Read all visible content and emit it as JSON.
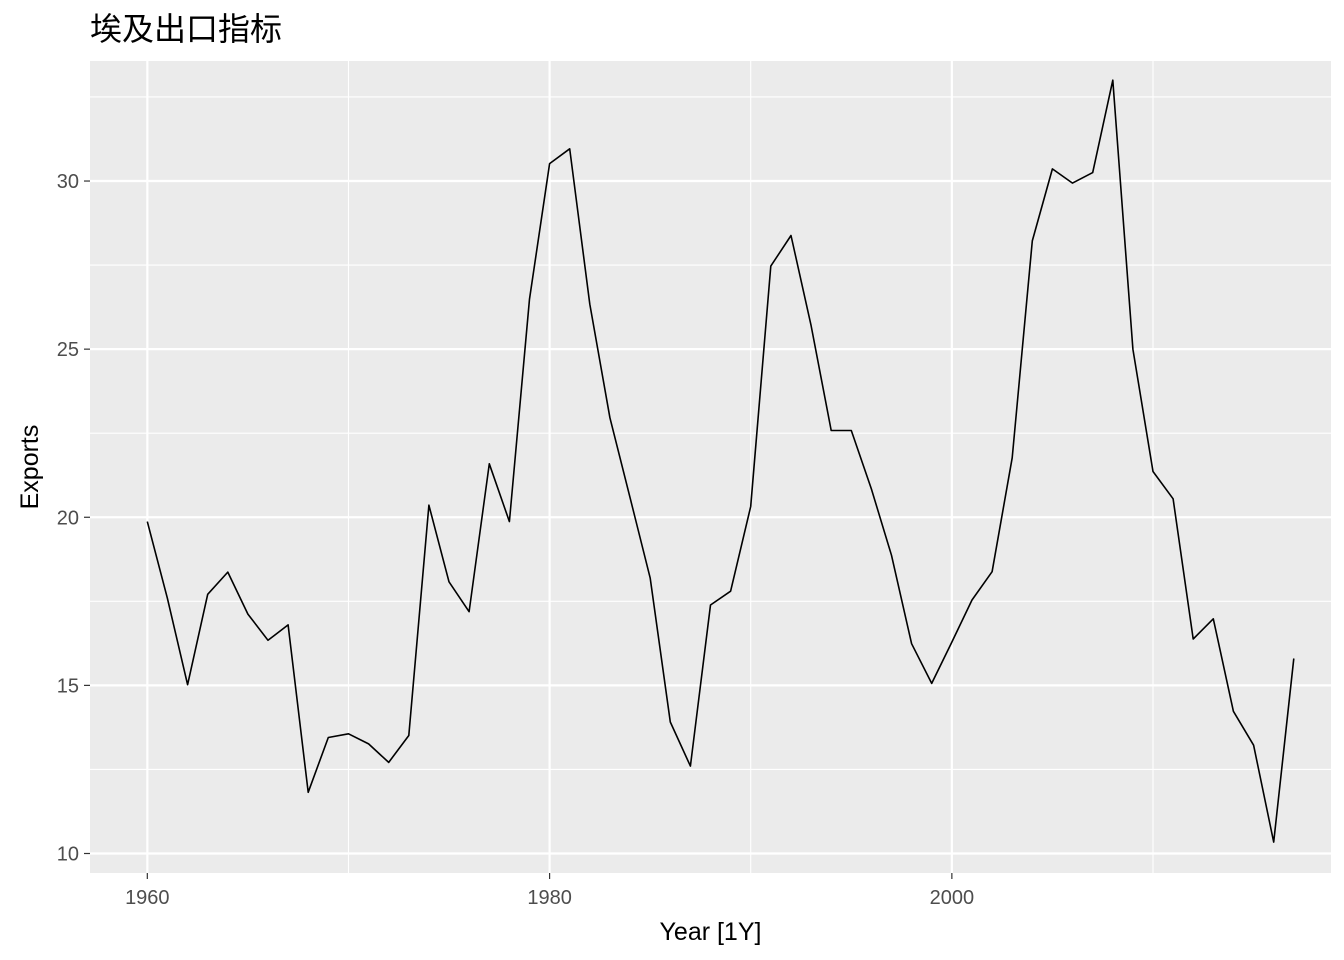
{
  "chart_data": {
    "type": "line",
    "title": "埃及出口指标",
    "xlabel": "Year [1Y]",
    "ylabel": "Exports",
    "xlim": [
      1957.15,
      2018.85
    ],
    "ylim": [
      9.42,
      33.57
    ],
    "x_ticks": [
      1960,
      1980,
      2000
    ],
    "y_ticks": [
      10,
      15,
      20,
      25,
      30
    ],
    "grid": true,
    "background": "#EBEBEB",
    "grid_major_color": "#FFFFFF",
    "line_color": "#000000",
    "series": [
      {
        "x": [
          1960,
          1961,
          1962,
          1963,
          1964,
          1965,
          1966,
          1967,
          1968,
          1969,
          1970,
          1971,
          1972,
          1973,
          1974,
          1975,
          1976,
          1977,
          1978,
          1979,
          1980,
          1981,
          1982,
          1983,
          1984,
          1985,
          1986,
          1987,
          1988,
          1989,
          1990,
          1991,
          1992,
          1993,
          1994,
          1995,
          1996,
          1997,
          1998,
          1999,
          2000,
          2001,
          2002,
          2003,
          2004,
          2005,
          2006,
          2007,
          2008,
          2009,
          2010,
          2011,
          2012,
          2013,
          2014,
          2015,
          2016,
          2017
        ],
        "values": [
          19.87,
          17.59,
          15.02,
          17.71,
          18.37,
          17.12,
          16.34,
          16.8,
          11.82,
          13.45,
          13.56,
          13.26,
          12.71,
          13.51,
          20.36,
          18.08,
          17.19,
          21.59,
          19.87,
          26.49,
          30.52,
          30.96,
          26.34,
          22.96,
          20.59,
          18.19,
          13.91,
          12.6,
          17.39,
          17.8,
          20.32,
          27.47,
          28.38,
          25.7,
          22.58,
          22.58,
          20.84,
          18.87,
          16.24,
          15.06,
          16.29,
          17.54,
          18.38,
          21.77,
          28.22,
          30.36,
          29.94,
          30.25,
          33.0,
          25.0,
          21.36,
          20.55,
          16.38,
          16.98,
          14.23,
          13.22,
          10.34,
          15.8
        ]
      }
    ]
  }
}
